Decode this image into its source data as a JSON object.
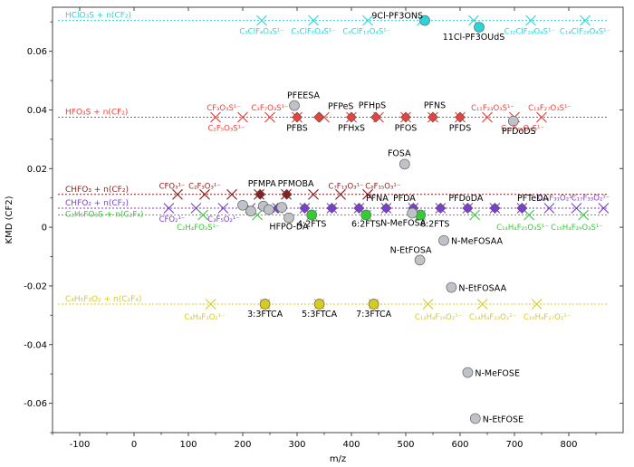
{
  "chart_data": {
    "type": "scatter",
    "xlabel": "m/z",
    "ylabel": "KMD (CF2)",
    "xlim": [
      -150,
      900
    ],
    "ylim": [
      -0.07,
      0.075
    ],
    "xticks": [
      "-100",
      "0",
      "100",
      "200",
      "300",
      "400",
      "500",
      "600",
      "700",
      "800"
    ],
    "xtick_values": [
      -100,
      0,
      100,
      200,
      300,
      400,
      500,
      600,
      700,
      800
    ],
    "yticks": [
      "0.06",
      "0.04",
      "0.02",
      "0",
      "-0.02",
      "-0.04",
      "-0.06"
    ],
    "ytick_values": [
      0.06,
      0.04,
      0.02,
      0,
      -0.02,
      -0.04,
      -0.06
    ],
    "grid": false,
    "colors": {
      "cyan": "#2ad4d8",
      "red": "#e8433c",
      "darkred": "#8b1f1f",
      "purple": "#7b3fd0",
      "green": "#33cc33",
      "yellow": "#d6cc1f",
      "gray": "#bfc3c8"
    },
    "series": [
      {
        "name": "HClO₃S + n(CF₂)",
        "color": "#2ad4d8",
        "y": 0.0705,
        "x_range": [
          -140,
          870
        ],
        "markers_x": [
          235,
          330,
          430,
          530,
          625,
          730,
          830
        ],
        "detected": [
          {
            "x": 535,
            "y": 0.0705,
            "label": "9Cl-PF3ONS"
          },
          {
            "x": 635,
            "y": 0.0682,
            "label": "11Cl-PF3OUdS"
          }
        ],
        "formulas": [
          {
            "x": 235,
            "y": 0.0668,
            "text": "C₃ClF₄O₄S¹⁻"
          },
          {
            "x": 330,
            "y": 0.0668,
            "text": "C₅ClF₈O₄S¹⁻"
          },
          {
            "x": 428,
            "y": 0.0668,
            "text": "C₆ClF₁₂O₄S¹⁻"
          },
          {
            "x": 728,
            "y": 0.0668,
            "text": "C₁₂ClF₂₄O₄S¹⁻"
          },
          {
            "x": 830,
            "y": 0.0668,
            "text": "C₁₄ClF₂₈O₄S¹⁻"
          }
        ]
      },
      {
        "name": "HFO₃S + n(CF₂)",
        "color": "#e8433c",
        "y": 0.0375,
        "x_range": [
          -140,
          870
        ],
        "markers_x": [
          150,
          200,
          250,
          300,
          350,
          400,
          450,
          500,
          550,
          600,
          650,
          700,
          750
        ],
        "detected": [
          {
            "x": 295,
            "y": 0.0415,
            "label": "PFEESA"
          },
          {
            "x": 340,
            "y": 0.0375,
            "label": "PFPeS"
          },
          {
            "x": 300,
            "y": 0.0375,
            "label": "PFBS"
          },
          {
            "x": 400,
            "y": 0.0375,
            "label": "PFHxS"
          },
          {
            "x": 445,
            "y": 0.0375,
            "label": "PFHpS"
          },
          {
            "x": 500,
            "y": 0.0375,
            "label": "PFOS"
          },
          {
            "x": 550,
            "y": 0.0375,
            "label": "PFNS"
          },
          {
            "x": 600,
            "y": 0.0375,
            "label": "PFDS"
          },
          {
            "x": 698,
            "y": 0.0362,
            "label": "PFDoDS"
          }
        ],
        "formulas": [
          {
            "x": 165,
            "y": 0.0408,
            "text": "CF₃O₃S¹⁻"
          },
          {
            "x": 250,
            "y": 0.0408,
            "text": "C₃F₇O₃S¹⁻"
          },
          {
            "x": 170,
            "y": 0.0338,
            "text": "C₂F₅O₃S¹⁻"
          },
          {
            "x": 660,
            "y": 0.0408,
            "text": "C₁₁F₂₃O₃S¹⁻"
          },
          {
            "x": 765,
            "y": 0.0408,
            "text": "C₁₃F₂₇O₃S¹⁻"
          },
          {
            "x": 715,
            "y": 0.0338,
            "text": "C₁₂F₂₅O₃S¹⁻"
          }
        ]
      },
      {
        "name": "CHFO₃ + n(CF₂)",
        "color": "#8b1f1f",
        "y": 0.0112,
        "x_range": [
          -140,
          870
        ],
        "markers_x": [
          80,
          130,
          180,
          230,
          280,
          330,
          380,
          430
        ],
        "detected": [
          {
            "x": 232,
            "y": 0.0112,
            "label": "PFMPA"
          },
          {
            "x": 281,
            "y": 0.0112,
            "label": "PFMOBA"
          }
        ],
        "formulas": [
          {
            "x": 70,
            "y": 0.014,
            "text": "CFO₃¹⁻"
          },
          {
            "x": 130,
            "y": 0.014,
            "text": "C₂F₃O₃¹⁻"
          },
          {
            "x": 390,
            "y": 0.014,
            "text": "C₇F₁₃O₃¹⁻"
          },
          {
            "x": 458,
            "y": 0.014,
            "text": "C₈F₁₅O₃¹⁻"
          }
        ]
      },
      {
        "name": "CHFO₂ + n(CF₂)",
        "color": "#7b3fd0",
        "y": 0.0065,
        "x_range": [
          -140,
          870
        ],
        "markers_x": [
          64,
          114,
          164,
          214,
          264,
          314,
          364,
          414,
          464,
          514,
          564,
          614,
          664,
          714,
          764,
          814,
          864
        ],
        "detected": [
          {
            "x": 265,
            "y": 0.0065,
            "label": ""
          },
          {
            "x": 314,
            "y": 0.0065,
            "label": ""
          },
          {
            "x": 364,
            "y": 0.0065,
            "label": ""
          },
          {
            "x": 414,
            "y": 0.0065,
            "label": ""
          },
          {
            "x": 464,
            "y": 0.0065,
            "label": "PFNA"
          },
          {
            "x": 514,
            "y": 0.0065,
            "label": "PFDA"
          },
          {
            "x": 564,
            "y": 0.0065,
            "label": ""
          },
          {
            "x": 614,
            "y": 0.0065,
            "label": "PFDoDA"
          },
          {
            "x": 664,
            "y": 0.0065,
            "label": ""
          },
          {
            "x": 714,
            "y": 0.0065,
            "label": "PFTeDA"
          }
        ],
        "formulas": [
          {
            "x": 70,
            "y": 0.0028,
            "text": "CFO₂¹⁻"
          },
          {
            "x": 165,
            "y": 0.0028,
            "text": "C₃F₅O₂¹⁻"
          },
          {
            "x": 778,
            "y": 0.01,
            "text": "C₁₆F₃₁O₂¹⁻"
          },
          {
            "x": 840,
            "y": 0.01,
            "text": "C₁₇F₃₃O₂¹⁻"
          }
        ]
      },
      {
        "name": "C₂H₅FO₃S + n(C₂F₄)",
        "color": "#33cc33",
        "y": 0.0042,
        "x_range": [
          -140,
          870
        ],
        "markers_x": [
          127,
          227,
          327,
          427,
          527,
          627,
          727,
          827
        ],
        "detected": [
          {
            "x": 327,
            "y": 0.0042,
            "label": "4:2FTS"
          },
          {
            "x": 427,
            "y": 0.0042,
            "label": "6:2FTS"
          },
          {
            "x": 527,
            "y": 0.0042,
            "label": "6:2FTS"
          }
        ],
        "formulas": [
          {
            "x": 118,
            "y": 0.0,
            "text": "C₂H₄FO₃S¹⁻"
          },
          {
            "x": 715,
            "y": 0.0,
            "text": "C₁₄H₄F₂₅O₃S¹⁻"
          },
          {
            "x": 815,
            "y": 0.0,
            "text": "C₁₆H₄F₂₉O₃S¹⁻"
          }
        ]
      },
      {
        "name": "C₄H₅F₃O₂ + n(C₂F₄)",
        "color": "#d6cc1f",
        "y": -0.0262,
        "x_range": [
          -140,
          870
        ],
        "markers_x": [
          141,
          241,
          341,
          441,
          541,
          641,
          741
        ],
        "detected": [
          {
            "x": 241,
            "y": -0.0262,
            "label": "3:3FTCA"
          },
          {
            "x": 341,
            "y": -0.0262,
            "label": "5:3FTCA"
          },
          {
            "x": 441,
            "y": -0.0262,
            "label": "7:3FTCA"
          }
        ],
        "formulas": [
          {
            "x": 130,
            "y": -0.0305,
            "text": "C₄H₄F₃O₂¹⁻"
          },
          {
            "x": 560,
            "y": -0.0305,
            "text": "C₁₂H₄F₁₉O₂¹⁻"
          },
          {
            "x": 660,
            "y": -0.0305,
            "text": "C₁₄H₄F₂₃O₂¹⁻"
          },
          {
            "x": 760,
            "y": -0.0305,
            "text": "C₁₆H₄F₂₇O₂¹⁻"
          }
        ]
      }
    ],
    "other_points": [
      {
        "x": 200,
        "y": 0.0075,
        "label": ""
      },
      {
        "x": 215,
        "y": 0.0055,
        "label": ""
      },
      {
        "x": 238,
        "y": 0.0072,
        "label": ""
      },
      {
        "x": 248,
        "y": 0.006,
        "label": ""
      },
      {
        "x": 272,
        "y": 0.0068,
        "label": ""
      },
      {
        "x": 285,
        "y": 0.0032,
        "label": "HFPO-DA"
      },
      {
        "x": 498,
        "y": 0.0215,
        "label": "FOSA"
      },
      {
        "x": 512,
        "y": 0.0048,
        "label": "N-MeFOSA"
      },
      {
        "x": 526,
        "y": -0.0112,
        "label": "N-EtFOSA"
      },
      {
        "x": 570,
        "y": -0.0045,
        "label": "N-MeFOSAA"
      },
      {
        "x": 584,
        "y": -0.0205,
        "label": "N-EtFOSAA"
      },
      {
        "x": 614,
        "y": -0.0495,
        "label": "N-MeFOSE"
      },
      {
        "x": 628,
        "y": -0.0652,
        "label": "N-EtFOSE"
      }
    ]
  }
}
